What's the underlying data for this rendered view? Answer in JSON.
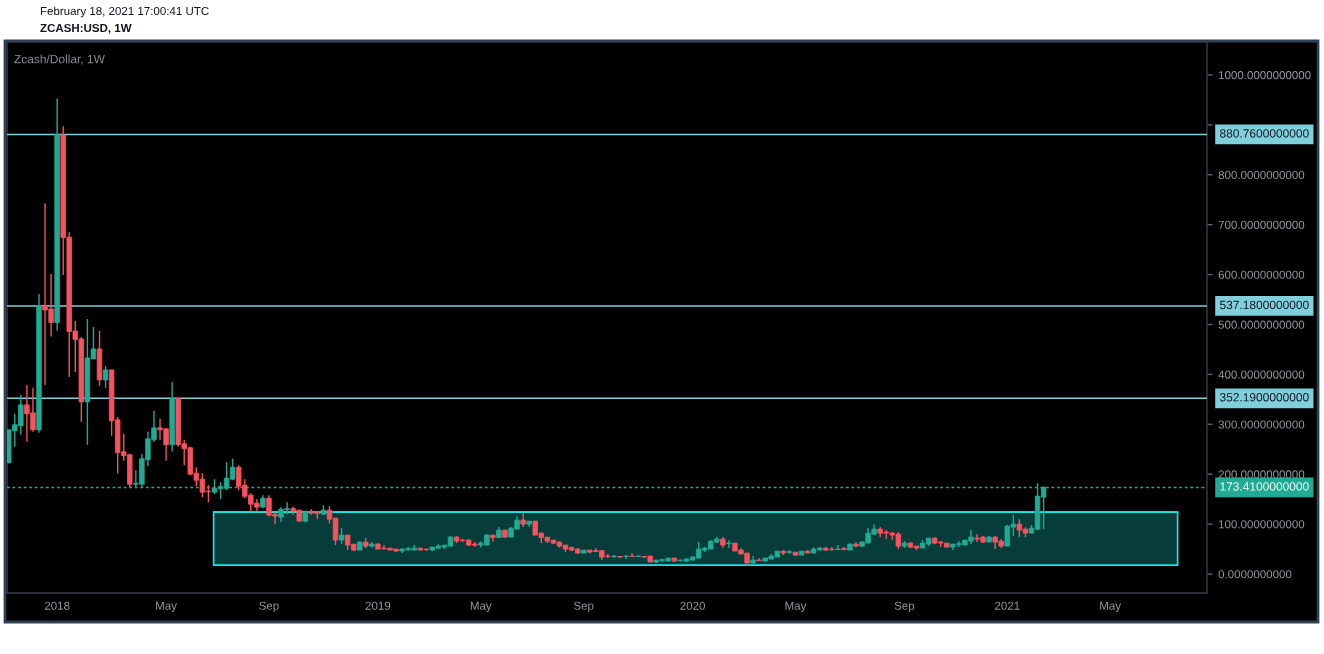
{
  "chart_data": {
    "type": "candlestick",
    "title": "Zcash/Dollar, 1W",
    "annotations": [
      "February 18, 2021 17:00:41 UTC",
      "ZCASH:USD, 1W"
    ],
    "x": [
      "2017-11-06",
      "2017-11-13",
      "2017-11-20",
      "2017-11-27",
      "2017-12-04",
      "2017-12-11",
      "2017-12-18",
      "2017-12-25",
      "2018-01-01",
      "2018-01-08",
      "2018-01-15",
      "2018-01-22",
      "2018-01-29",
      "2018-02-05",
      "2018-02-12",
      "2018-02-19",
      "2018-02-26",
      "2018-03-05",
      "2018-03-12",
      "2018-03-19",
      "2018-03-26",
      "2018-04-02",
      "2018-04-09",
      "2018-04-16",
      "2018-04-23",
      "2018-04-30",
      "2018-05-07",
      "2018-05-14",
      "2018-05-21",
      "2018-05-28",
      "2018-06-04",
      "2018-06-11",
      "2018-06-18",
      "2018-06-25",
      "2018-07-02",
      "2018-07-09",
      "2018-07-16",
      "2018-07-23",
      "2018-07-30",
      "2018-08-06",
      "2018-08-13",
      "2018-08-20",
      "2018-08-27",
      "2018-09-03",
      "2018-09-10",
      "2018-09-17",
      "2018-09-24",
      "2018-10-01",
      "2018-10-08",
      "2018-10-15",
      "2018-10-22",
      "2018-10-29",
      "2018-11-05",
      "2018-11-12",
      "2018-11-19",
      "2018-11-26",
      "2018-12-03",
      "2018-12-10",
      "2018-12-17",
      "2018-12-24",
      "2018-12-31",
      "2019-01-07",
      "2019-01-14",
      "2019-01-21",
      "2019-01-28",
      "2019-02-04",
      "2019-02-11",
      "2019-02-18",
      "2019-02-25",
      "2019-03-04",
      "2019-03-11",
      "2019-03-18",
      "2019-03-25",
      "2019-04-01",
      "2019-04-08",
      "2019-04-15",
      "2019-04-22",
      "2019-04-29",
      "2019-05-06",
      "2019-05-13",
      "2019-05-20",
      "2019-05-27",
      "2019-06-03",
      "2019-06-10",
      "2019-06-17",
      "2019-06-24",
      "2019-07-01",
      "2019-07-08",
      "2019-07-15",
      "2019-07-22",
      "2019-07-29",
      "2019-08-05",
      "2019-08-12",
      "2019-08-19",
      "2019-08-26",
      "2019-09-02",
      "2019-09-09",
      "2019-09-16",
      "2019-09-23",
      "2019-09-30",
      "2019-10-07",
      "2019-10-14",
      "2019-10-21",
      "2019-10-28",
      "2019-11-04",
      "2019-11-11",
      "2019-11-18",
      "2019-11-25",
      "2019-12-02",
      "2019-12-09",
      "2019-12-16",
      "2019-12-23",
      "2019-12-30",
      "2020-01-06",
      "2020-01-13",
      "2020-01-20",
      "2020-01-27",
      "2020-02-03",
      "2020-02-10",
      "2020-02-17",
      "2020-02-24",
      "2020-03-02",
      "2020-03-09",
      "2020-03-16",
      "2020-03-23",
      "2020-03-30",
      "2020-04-06",
      "2020-04-13",
      "2020-04-20",
      "2020-04-27",
      "2020-05-04",
      "2020-05-11",
      "2020-05-18",
      "2020-05-25",
      "2020-06-01",
      "2020-06-08",
      "2020-06-15",
      "2020-06-22",
      "2020-06-29",
      "2020-07-06",
      "2020-07-13",
      "2020-07-20",
      "2020-07-27",
      "2020-08-03",
      "2020-08-10",
      "2020-08-17",
      "2020-08-24",
      "2020-08-31",
      "2020-09-07",
      "2020-09-14",
      "2020-09-21",
      "2020-09-28",
      "2020-10-05",
      "2020-10-12",
      "2020-10-19",
      "2020-10-26",
      "2020-11-02",
      "2020-11-09",
      "2020-11-16",
      "2020-11-23",
      "2020-11-30",
      "2020-12-07",
      "2020-12-14",
      "2020-12-21",
      "2020-12-28",
      "2021-01-04",
      "2021-01-11",
      "2021-01-18",
      "2021-01-25",
      "2021-02-01",
      "2021-02-08",
      "2021-02-15"
    ],
    "ohlc": [
      [
        223,
        289,
        222,
        289
      ],
      [
        287,
        321,
        255,
        299
      ],
      [
        297,
        359,
        279,
        339
      ],
      [
        339,
        379,
        265,
        321
      ],
      [
        323,
        373,
        285,
        289
      ],
      [
        289,
        561,
        283,
        537.18
      ],
      [
        537,
        743,
        379,
        529
      ],
      [
        531,
        601,
        476,
        504
      ],
      [
        504,
        953,
        488,
        880.76
      ],
      [
        880,
        897,
        599,
        674
      ],
      [
        675,
        685,
        395,
        486
      ],
      [
        487,
        507,
        405,
        470
      ],
      [
        471,
        475,
        305,
        345
      ],
      [
        345,
        511,
        259,
        433
      ],
      [
        431,
        495,
        431,
        451
      ],
      [
        451,
        487,
        377,
        389
      ],
      [
        389,
        417,
        373,
        409
      ],
      [
        409,
        409,
        277,
        307
      ],
      [
        309,
        315,
        201,
        243
      ],
      [
        245,
        281,
        227,
        237
      ],
      [
        239,
        241,
        173,
        180
      ],
      [
        180,
        208,
        173,
        182
      ],
      [
        180,
        241,
        173,
        231
      ],
      [
        229,
        285,
        216,
        271
      ],
      [
        269,
        327,
        265,
        293
      ],
      [
        293,
        311,
        269,
        289
      ],
      [
        291,
        291,
        227,
        259
      ],
      [
        259,
        385,
        245,
        352.19
      ],
      [
        352,
        353,
        255,
        259
      ],
      [
        261,
        269,
        218,
        251
      ],
      [
        253,
        255,
        198,
        200
      ],
      [
        202,
        214,
        176,
        188
      ],
      [
        190,
        202,
        154,
        164
      ],
      [
        166,
        178,
        144,
        165
      ],
      [
        164,
        190,
        160,
        172
      ],
      [
        171,
        184,
        150,
        175
      ],
      [
        172,
        224,
        168,
        192
      ],
      [
        190,
        231,
        188,
        214
      ],
      [
        214,
        218,
        168,
        176
      ],
      [
        178,
        190,
        152,
        156
      ],
      [
        158,
        162,
        124,
        140
      ],
      [
        142,
        150,
        124,
        134
      ],
      [
        134,
        158,
        132,
        152
      ],
      [
        152,
        158,
        116,
        118
      ],
      [
        120,
        124,
        100,
        116
      ],
      [
        114,
        134,
        104,
        130
      ],
      [
        129,
        144,
        120,
        131
      ],
      [
        131,
        135,
        119,
        127
      ],
      [
        128,
        129,
        105,
        106
      ],
      [
        106,
        126,
        104,
        126
      ],
      [
        126,
        130,
        119,
        122
      ],
      [
        125,
        125,
        110,
        121
      ],
      [
        120,
        138,
        119,
        128
      ],
      [
        128,
        136,
        101,
        110
      ],
      [
        112,
        112,
        58,
        68
      ],
      [
        68,
        92,
        60,
        78
      ],
      [
        78,
        78,
        48,
        58
      ],
      [
        60,
        60,
        46,
        48
      ],
      [
        48,
        66,
        48,
        64
      ],
      [
        64,
        72,
        52,
        56
      ],
      [
        56,
        64,
        52,
        60
      ],
      [
        60,
        62,
        50,
        50
      ],
      [
        52,
        58,
        48,
        51
      ],
      [
        52,
        52,
        48,
        48
      ],
      [
        50,
        50,
        44,
        46
      ],
      [
        46,
        52,
        42,
        50
      ],
      [
        49,
        54,
        46,
        51
      ],
      [
        48,
        58,
        48,
        52
      ],
      [
        52,
        52,
        48,
        48
      ],
      [
        50,
        50,
        46,
        49
      ],
      [
        48,
        54,
        46,
        54
      ],
      [
        52,
        60,
        50,
        56
      ],
      [
        54,
        58,
        50,
        58
      ],
      [
        56,
        76,
        56,
        74
      ],
      [
        74,
        76,
        62,
        66
      ],
      [
        68,
        70,
        64,
        67
      ],
      [
        68,
        70,
        56,
        58
      ],
      [
        60,
        64,
        54,
        58
      ],
      [
        58,
        65,
        53,
        62
      ],
      [
        58,
        80,
        57,
        78
      ],
      [
        78,
        78,
        65,
        73
      ],
      [
        73,
        94,
        73,
        88
      ],
      [
        88,
        88,
        73,
        74
      ],
      [
        74,
        94,
        74,
        92
      ],
      [
        90,
        116,
        90,
        108
      ],
      [
        108,
        122,
        94,
        100
      ],
      [
        100,
        106,
        94,
        106
      ],
      [
        106,
        106,
        78,
        78
      ],
      [
        82,
        83,
        62,
        73
      ],
      [
        74,
        74,
        62,
        66
      ],
      [
        68,
        68,
        60,
        62
      ],
      [
        64,
        66,
        53,
        56
      ],
      [
        58,
        58,
        44,
        50
      ],
      [
        53,
        55,
        46,
        48
      ],
      [
        50,
        52,
        40,
        42
      ],
      [
        42,
        48,
        42,
        48
      ],
      [
        48,
        48,
        41,
        44
      ],
      [
        47,
        52,
        44,
        45
      ],
      [
        47,
        47,
        28,
        34
      ],
      [
        36,
        40,
        32,
        35
      ],
      [
        35,
        38,
        32,
        36
      ],
      [
        35,
        36,
        32,
        34
      ],
      [
        35,
        38,
        30,
        36
      ],
      [
        36,
        42,
        34,
        35
      ],
      [
        35,
        38,
        34,
        36
      ],
      [
        35,
        36,
        32,
        34
      ],
      [
        36,
        36,
        24,
        24
      ],
      [
        24,
        28,
        22,
        28
      ],
      [
        27,
        30,
        24,
        29
      ],
      [
        26,
        32,
        26,
        32
      ],
      [
        32,
        32,
        24,
        26
      ],
      [
        27,
        29,
        25,
        28
      ],
      [
        26,
        32,
        24,
        30
      ],
      [
        28,
        36,
        28,
        34
      ],
      [
        32,
        64,
        32,
        50
      ],
      [
        48,
        54,
        44,
        52
      ],
      [
        50,
        68,
        50,
        66
      ],
      [
        64,
        74,
        62,
        70
      ],
      [
        70,
        74,
        52,
        58
      ],
      [
        61,
        68,
        52,
        62
      ],
      [
        62,
        62,
        46,
        46
      ],
      [
        48,
        52,
        40,
        40
      ],
      [
        42,
        42,
        17,
        22
      ],
      [
        22,
        36,
        18,
        28
      ],
      [
        28,
        32,
        26,
        27
      ],
      [
        26,
        32,
        26,
        32
      ],
      [
        30,
        40,
        30,
        36
      ],
      [
        34,
        46,
        34,
        46
      ],
      [
        46,
        48,
        38,
        42
      ],
      [
        43,
        48,
        40,
        45
      ],
      [
        44,
        44,
        36,
        38
      ],
      [
        38,
        46,
        38,
        46
      ],
      [
        46,
        48,
        42,
        42
      ],
      [
        42,
        54,
        42,
        50
      ],
      [
        48,
        54,
        48,
        52
      ],
      [
        52,
        54,
        46,
        48
      ],
      [
        50,
        54,
        46,
        49
      ],
      [
        49,
        58,
        48,
        50
      ],
      [
        51,
        54,
        48,
        49
      ],
      [
        48,
        61,
        48,
        60
      ],
      [
        60,
        64,
        54,
        56
      ],
      [
        56,
        66,
        54,
        64
      ],
      [
        62,
        92,
        62,
        82
      ],
      [
        80,
        100,
        78,
        90
      ],
      [
        90,
        94,
        74,
        82
      ],
      [
        84,
        88,
        70,
        82
      ],
      [
        82,
        84,
        68,
        78
      ],
      [
        80,
        84,
        50,
        56
      ],
      [
        56,
        66,
        52,
        62
      ],
      [
        62,
        64,
        52,
        54
      ],
      [
        56,
        56,
        48,
        52
      ],
      [
        52,
        68,
        52,
        62
      ],
      [
        60,
        72,
        56,
        72
      ],
      [
        72,
        74,
        60,
        62
      ],
      [
        64,
        66,
        54,
        62
      ],
      [
        62,
        62,
        54,
        54
      ],
      [
        54,
        60,
        48,
        60
      ],
      [
        59,
        66,
        54,
        61
      ],
      [
        58,
        68,
        58,
        68
      ],
      [
        66,
        88,
        60,
        74
      ],
      [
        72,
        80,
        64,
        70
      ],
      [
        74,
        76,
        62,
        64
      ],
      [
        64,
        76,
        64,
        74
      ],
      [
        74,
        76,
        50,
        64
      ],
      [
        66,
        70,
        52,
        56
      ],
      [
        56,
        98,
        56,
        96
      ],
      [
        94,
        118,
        76,
        100
      ],
      [
        100,
        110,
        74,
        88
      ],
      [
        90,
        94,
        74,
        82
      ],
      [
        82,
        98,
        82,
        92
      ],
      [
        90,
        182,
        88,
        156
      ],
      [
        154,
        176,
        90,
        173.41
      ]
    ],
    "colors": [
      "#22ab94",
      "#22ab94",
      "#22ab94",
      "#f7525f",
      "#f7525f",
      "#22ab94",
      "#f7525f",
      "#f7525f",
      "#22ab94",
      "#f7525f",
      "#f7525f",
      "#f7525f",
      "#f7525f",
      "#22ab94",
      "#22ab94",
      "#f7525f",
      "#22ab94",
      "#f7525f",
      "#f7525f",
      "#f7525f",
      "#f7525f",
      "#22ab94",
      "#22ab94",
      "#22ab94",
      "#22ab94",
      "#f7525f",
      "#f7525f",
      "#22ab94",
      "#f7525f",
      "#f7525f",
      "#f7525f",
      "#f7525f",
      "#f7525f",
      "#f7525f",
      "#22ab94",
      "#22ab94",
      "#22ab94",
      "#22ab94",
      "#f7525f",
      "#f7525f",
      "#f7525f",
      "#f7525f",
      "#22ab94",
      "#f7525f",
      "#f7525f",
      "#22ab94",
      "#22ab94",
      "#f7525f",
      "#f7525f",
      "#22ab94",
      "#f7525f",
      "#f7525f",
      "#22ab94",
      "#f7525f",
      "#f7525f",
      "#22ab94",
      "#f7525f",
      "#f7525f",
      "#22ab94",
      "#f7525f",
      "#22ab94",
      "#f7525f",
      "#f7525f",
      "#f7525f",
      "#f7525f",
      "#22ab94",
      "#22ab94",
      "#22ab94",
      "#f7525f",
      "#f7525f",
      "#22ab94",
      "#22ab94",
      "#22ab94",
      "#22ab94",
      "#f7525f",
      "#f7525f",
      "#f7525f",
      "#f7525f",
      "#22ab94",
      "#22ab94",
      "#f7525f",
      "#22ab94",
      "#f7525f",
      "#22ab94",
      "#22ab94",
      "#f7525f",
      "#22ab94",
      "#f7525f",
      "#f7525f",
      "#f7525f",
      "#f7525f",
      "#f7525f",
      "#f7525f",
      "#f7525f",
      "#f7525f",
      "#22ab94",
      "#f7525f",
      "#f7525f",
      "#f7525f",
      "#f7525f",
      "#22ab94",
      "#f7525f",
      "#22ab94",
      "#f7525f",
      "#22ab94",
      "#f7525f",
      "#f7525f",
      "#22ab94",
      "#22ab94",
      "#22ab94",
      "#f7525f",
      "#22ab94",
      "#22ab94",
      "#22ab94",
      "#22ab94",
      "#22ab94",
      "#22ab94",
      "#22ab94",
      "#f7525f",
      "#22ab94",
      "#f7525f",
      "#f7525f",
      "#f7525f",
      "#22ab94",
      "#f7525f",
      "#22ab94",
      "#22ab94",
      "#22ab94",
      "#f7525f",
      "#22ab94",
      "#f7525f",
      "#22ab94",
      "#f7525f",
      "#22ab94",
      "#22ab94",
      "#f7525f",
      "#f7525f",
      "#22ab94",
      "#f7525f",
      "#22ab94",
      "#f7525f",
      "#22ab94",
      "#22ab94",
      "#22ab94",
      "#f7525f",
      "#f7525f",
      "#f7525f",
      "#f7525f",
      "#22ab94",
      "#f7525f",
      "#f7525f",
      "#22ab94",
      "#22ab94",
      "#f7525f",
      "#f7525f",
      "#f7525f",
      "#22ab94",
      "#22ab94",
      "#22ab94",
      "#22ab94",
      "#f7525f",
      "#f7525f",
      "#22ab94",
      "#f7525f",
      "#f7525f",
      "#22ab94",
      "#22ab94",
      "#f7525f",
      "#f7525f",
      "#22ab94",
      "#22ab94",
      "#22ab94"
    ],
    "series": [
      {
        "type": "line",
        "color": "#19e6e1",
        "x": [
          "2018-07-01",
          "2021-07-20"
        ],
        "values": [
          124,
          124
        ],
        "lower": [
          18,
          18
        ],
        "upper": [
          124,
          124
        ]
      }
    ],
    "ref_lines": [
      {
        "axis": "y",
        "value": 880.76,
        "label": "880.7600000000",
        "color": "#80cfdc"
      },
      {
        "axis": "y",
        "value": 537.18,
        "label": "537.1800000000",
        "color": "#80cfdc"
      },
      {
        "axis": "y",
        "value": 352.19,
        "label": "352.1900000000",
        "color": "#80cfdc"
      },
      {
        "axis": "y",
        "value": 173.41,
        "label": "173.4100000000",
        "color": "#22ab94",
        "line_style": "dotted"
      }
    ],
    "xlim": [
      "2017-11-04",
      "2021-08-23"
    ],
    "xticks": [
      {
        "value": "2018-01-01",
        "label": "2018"
      },
      {
        "value": "2018-05-07",
        "label": "May"
      },
      {
        "value": "2018-09-03",
        "label": "Sep"
      },
      {
        "value": "2019-01-07",
        "label": "2019"
      },
      {
        "value": "2019-05-06",
        "label": "May"
      },
      {
        "value": "2019-09-02",
        "label": "Sep"
      },
      {
        "value": "2020-01-06",
        "label": "2020"
      },
      {
        "value": "2020-05-04",
        "label": "May"
      },
      {
        "value": "2020-09-07",
        "label": "Sep"
      },
      {
        "value": "2021-01-04",
        "label": "2021"
      },
      {
        "value": "2021-05-03",
        "label": "May"
      }
    ],
    "ylim": [
      -38,
      1066
    ],
    "yticks": [
      {
        "value": 0,
        "label": "0.0000000000"
      },
      {
        "value": 100,
        "label": "100.0000000000"
      },
      {
        "value": 200,
        "label": "200.0000000000"
      },
      {
        "value": 300,
        "label": "300.0000000000"
      },
      {
        "value": 400,
        "label": "400.0000000000"
      },
      {
        "value": 500,
        "label": "500.0000000000"
      },
      {
        "value": 600,
        "label": "600.0000000000"
      },
      {
        "value": 700,
        "label": "700.0000000000"
      },
      {
        "value": 800,
        "label": "800.0000000000"
      },
      {
        "value": 900,
        "label": null
      },
      {
        "value": 1000,
        "label": "1000.0000000000"
      }
    ]
  }
}
